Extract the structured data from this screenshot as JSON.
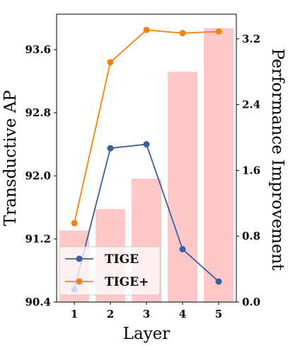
{
  "chart_data": {
    "type": "line",
    "categories": [
      "1",
      "2",
      "3",
      "4",
      "5"
    ],
    "xlabel": "Layer",
    "ylabel": "Transductive AP",
    "y2label": "Performance Improvement",
    "ylim": [
      90.4,
      94.05
    ],
    "y2lim": [
      0.0,
      3.5
    ],
    "yticks": [
      "90.4",
      "91.2",
      "92.0",
      "92.8",
      "93.6"
    ],
    "y2ticks": [
      "0.0",
      "0.8",
      "1.6",
      "2.4",
      "3.2"
    ],
    "bars": {
      "axis": "right",
      "color": "#ffc8c8",
      "values": [
        0.87,
        1.13,
        1.5,
        2.8,
        3.33
      ]
    },
    "series": [
      {
        "name": "TIGE",
        "color": "#3a5fa0",
        "values": [
          90.56,
          92.35,
          92.4,
          91.07,
          90.66
        ]
      },
      {
        "name": "TIGE+",
        "color": "#ff7f0e",
        "values": [
          91.4,
          93.44,
          93.85,
          93.81,
          93.83
        ]
      }
    ],
    "legend": {
      "position": "lower-left",
      "entries": [
        "TIGE",
        "TIGE+"
      ]
    },
    "grid": false
  }
}
